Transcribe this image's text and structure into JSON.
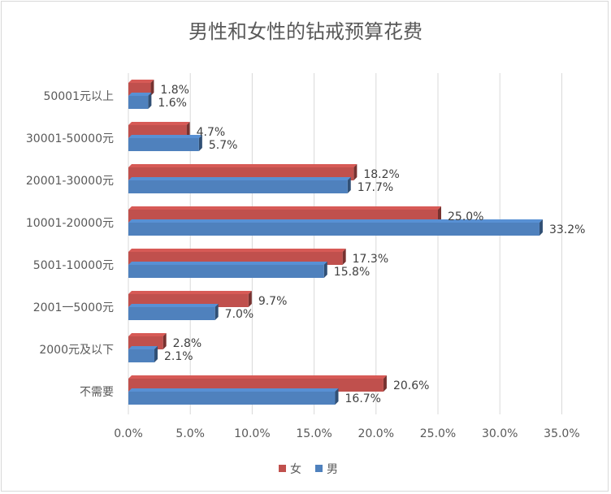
{
  "chart_data": {
    "type": "bar",
    "orientation": "horizontal",
    "title": "男性和女性的钻戒预算花费",
    "categories": [
      "50001元以上",
      "30001-50000元",
      "20001-30000元",
      "10001-20000元",
      "5001-10000元",
      "2001一5000元",
      "2000元及以下",
      "不需要"
    ],
    "series": [
      {
        "name": "女",
        "color": "#c0504d",
        "values": [
          1.8,
          4.7,
          18.2,
          25.0,
          17.3,
          9.7,
          2.8,
          20.6
        ],
        "labels": [
          "1.8%",
          "4.7%",
          "18.2%",
          "25.0%",
          "17.3%",
          "9.7%",
          "2.8%",
          "20.6%"
        ]
      },
      {
        "name": "男",
        "color": "#4f81bd",
        "values": [
          1.6,
          5.7,
          17.7,
          33.2,
          15.8,
          7.0,
          2.1,
          16.7
        ],
        "labels": [
          "1.6%",
          "5.7%",
          "17.7%",
          "33.2%",
          "15.8%",
          "7.0%",
          "2.1%",
          "16.7%"
        ]
      }
    ],
    "xlim": [
      0,
      35
    ],
    "xticks": [
      0,
      5,
      10,
      15,
      20,
      25,
      30,
      35
    ],
    "xtick_labels": [
      "0.0%",
      "5.0%",
      "10.0%",
      "15.0%",
      "20.0%",
      "25.0%",
      "30.0%",
      "35.0%"
    ],
    "grid": true,
    "legend_position": "bottom"
  }
}
